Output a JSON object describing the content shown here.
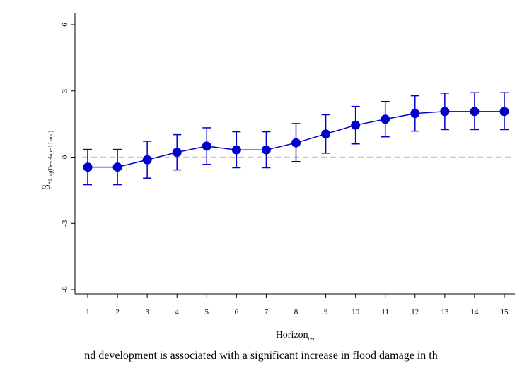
{
  "chart_data": {
    "type": "line",
    "ylabel_main": "β",
    "ylabel_sub": "ΔLog(Developed Land)",
    "xlabel_main": "Horizon",
    "xlabel_sub": "t+n",
    "x": [
      1,
      2,
      3,
      4,
      5,
      6,
      7,
      8,
      9,
      10,
      11,
      12,
      13,
      14,
      15
    ],
    "series": [
      {
        "values": [
          -0.45,
          -0.45,
          -0.12,
          0.22,
          0.5,
          0.33,
          0.33,
          0.65,
          1.05,
          1.45,
          1.72,
          1.98,
          2.07,
          2.07,
          2.07
        ],
        "ci_low": [
          -1.25,
          -1.25,
          -0.95,
          -0.58,
          -0.33,
          -0.48,
          -0.48,
          -0.2,
          0.18,
          0.6,
          0.92,
          1.18,
          1.25,
          1.25,
          1.25
        ],
        "ci_high": [
          0.35,
          0.35,
          0.72,
          1.02,
          1.33,
          1.15,
          1.15,
          1.52,
          1.92,
          2.3,
          2.52,
          2.78,
          2.9,
          2.92,
          2.92
        ]
      }
    ],
    "xticks": [
      "1",
      "2",
      "3",
      "4",
      "5",
      "6",
      "7",
      "8",
      "9",
      "10",
      "11",
      "12",
      "13",
      "14",
      "15"
    ],
    "yticks": [
      "-6",
      "-3",
      "0",
      "3",
      "6"
    ],
    "ylim": [
      -6,
      6
    ],
    "xlim": [
      1,
      15
    ],
    "reference_line": 0,
    "grid": false,
    "color": "#0000cc"
  },
  "caption": "nd development is associated with a significant increase in flood damage in th"
}
